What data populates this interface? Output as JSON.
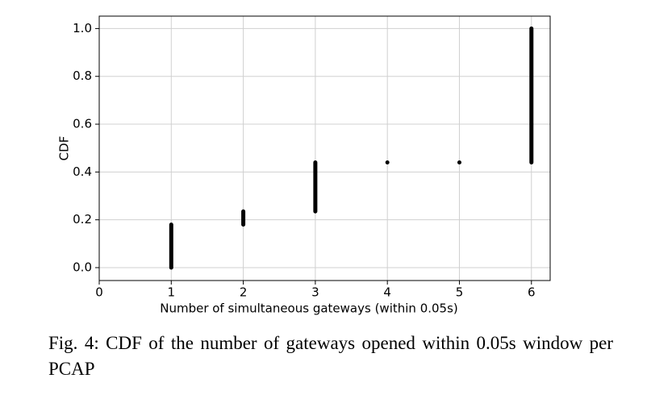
{
  "chart_data": {
    "type": "range",
    "x_label": "Number of simultaneous gateways (within 0.05s)",
    "y_label": "CDF",
    "x": [
      1,
      2,
      3,
      4,
      5,
      6
    ],
    "low": [
      0.0,
      0.18,
      0.235,
      0.44,
      0.44,
      0.44
    ],
    "high": [
      0.18,
      0.235,
      0.44,
      0.44,
      0.44,
      1.0
    ],
    "color": "#000000",
    "xlim": [
      0,
      6.26
    ],
    "xticks": [
      0,
      1,
      2,
      3,
      4,
      5,
      6
    ],
    "ylim": [
      -0.054,
      1.052
    ],
    "yticks": [
      {
        "value": 0,
        "label": "0.0"
      },
      0.2,
      0.4,
      0.6,
      0.8,
      {
        "value": 1,
        "label": "1.0"
      }
    ],
    "grid": true
  },
  "caption": "Fig. 4: CDF of the number of gateways opened within 0.05s window per PCAP"
}
